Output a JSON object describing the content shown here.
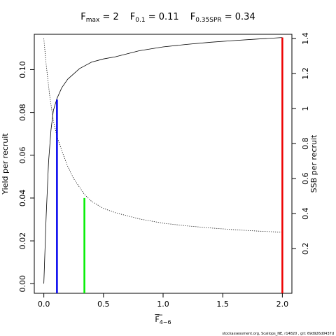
{
  "chart_data": {
    "type": "line",
    "title": {
      "fmax": {
        "label": "F",
        "sub": "max",
        "eq": " = 2"
      },
      "f01": {
        "label": "F",
        "sub": "0.1",
        "eq": " = 0.11"
      },
      "fspr": {
        "label": "F",
        "sub": "0.35SPR",
        "eq": " = 0.34"
      }
    },
    "xlabel": {
      "label": "F",
      "sub": "4−6"
    },
    "ylabel_left": "Yield per recruit",
    "ylabel_right": "SSB per recruit",
    "xlim": [
      -0.08,
      2.08
    ],
    "ylim_left": [
      -0.0045,
      0.1165
    ],
    "ylim_right": [
      -0.055,
      1.424
    ],
    "x_ticks": [
      0,
      0.5,
      1,
      1.5,
      2
    ],
    "x_tick_labels": [
      "0.0",
      "0.5",
      "1.0",
      "1.5",
      "2.0"
    ],
    "y_left_ticks": [
      0,
      0.02,
      0.04,
      0.06,
      0.08,
      0.1
    ],
    "y_left_tick_labels": [
      "0.00",
      "0.02",
      "0.04",
      "0.06",
      "0.08",
      "0.10"
    ],
    "y_right_ticks": [
      0.2,
      0.4,
      0.6,
      0.8,
      1,
      1.2,
      1.4
    ],
    "y_right_tick_labels": [
      "0.2",
      "0.4",
      "0.6",
      "0.8",
      "1",
      "1.2",
      "1.4"
    ],
    "series": [
      {
        "style": "solid",
        "axis": "left",
        "x": [
          0,
          0.02,
          0.04,
          0.06,
          0.08,
          0.11,
          0.15,
          0.2,
          0.3,
          0.4,
          0.5,
          0.6,
          0.8,
          1.0,
          1.2,
          1.4,
          1.6,
          1.8,
          2.0
        ],
        "y": [
          0.0,
          0.032,
          0.057,
          0.072,
          0.081,
          0.0865,
          0.0915,
          0.0955,
          0.1005,
          0.1035,
          0.105,
          0.106,
          0.1088,
          0.1106,
          0.1118,
          0.1128,
          0.1136,
          0.1143,
          0.115
        ]
      },
      {
        "style": "dotted",
        "axis": "right",
        "x": [
          0,
          0.02,
          0.05,
          0.08,
          0.11,
          0.15,
          0.2,
          0.25,
          0.34,
          0.4,
          0.5,
          0.6,
          0.8,
          1.0,
          1.2,
          1.4,
          1.6,
          1.8,
          2.0
        ],
        "y": [
          1.4,
          1.25,
          1.07,
          0.93,
          0.84,
          0.76,
          0.67,
          0.6,
          0.51,
          0.47,
          0.43,
          0.405,
          0.37,
          0.345,
          0.33,
          0.318,
          0.308,
          0.3,
          0.294
        ]
      }
    ],
    "reference_lines": [
      {
        "x": 0.11,
        "y": 0.086,
        "color": "#0000ee"
      },
      {
        "x": 0.34,
        "y": 0.04,
        "color": "#00ee00"
      },
      {
        "x": 2.0,
        "y": 0.115,
        "color": "#ee0000"
      }
    ],
    "footnote": "stockassessment.org,  Scallops_NE,  r14820 ,  git:  69d926d0437d"
  }
}
